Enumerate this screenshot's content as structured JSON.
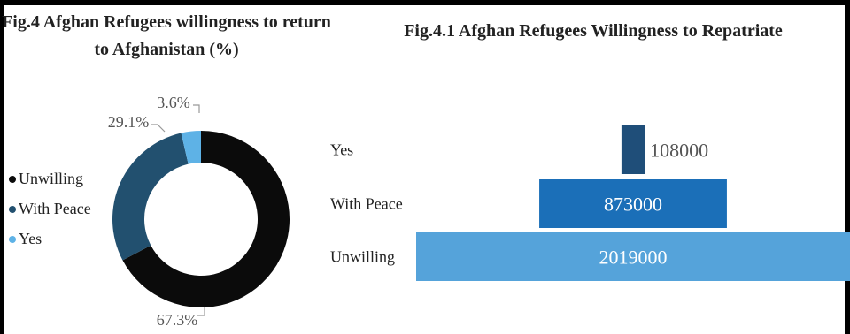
{
  "chart_data": [
    {
      "type": "pie",
      "title_line1": "Fig.4 Afghan Refugees willingness to return",
      "title_line2": "to Afghanistan (%)",
      "slices": [
        {
          "label": "Unwilling",
          "value": 67.3,
          "value_label": "67.3%",
          "color": "#0b0b0b"
        },
        {
          "label": "With Peace",
          "value": 29.1,
          "value_label": "29.1%",
          "color": "#22506f"
        },
        {
          "label": "Yes",
          "value": 3.6,
          "value_label": "3.6%",
          "color": "#5eb2e6"
        }
      ],
      "legend": {
        "placement": "left",
        "items": [
          "Unwilling",
          "With Peace",
          "Yes"
        ]
      },
      "style": "donut"
    },
    {
      "type": "bar",
      "orientation": "horizontal",
      "title": "Fig.4.1 Afghan Refugees Willingness to Repatriate",
      "categories": [
        "Yes",
        "With Peace",
        "Unwilling"
      ],
      "values": [
        108000,
        873000,
        2019000
      ],
      "value_labels": [
        "108000",
        "873000",
        "2019000"
      ],
      "colors": [
        "#1f4e79",
        "#1b6fb8",
        "#55a3da"
      ],
      "alignment": "centered"
    }
  ]
}
